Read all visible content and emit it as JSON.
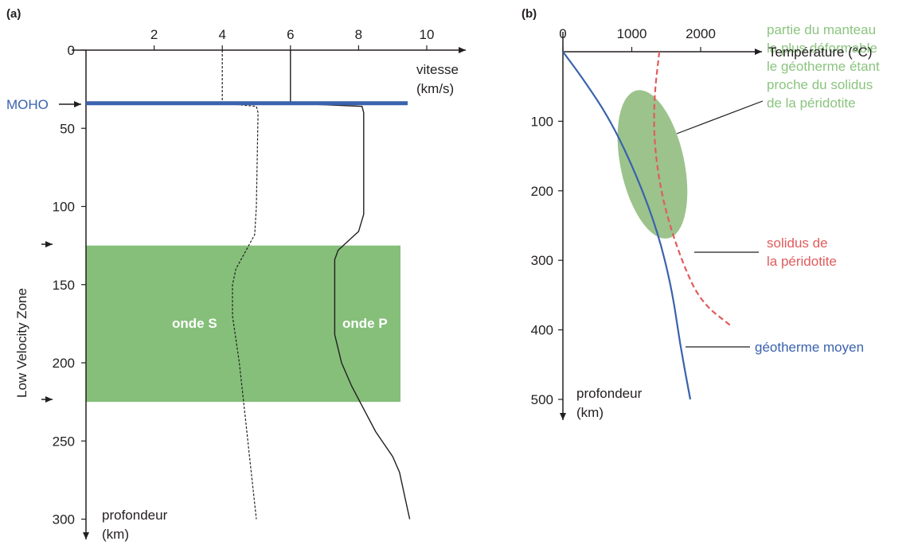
{
  "chart_data": [
    {
      "panel": "(a)",
      "type": "line",
      "x_ticks": [
        "2",
        "4",
        "6",
        "8",
        "10"
      ],
      "y_ticks": [
        "0",
        "50",
        "100",
        "150",
        "200",
        "250",
        "300"
      ],
      "xlabel": [
        "vitesse",
        "(km/s)"
      ],
      "ylabel": [
        "profondeur",
        "(km)"
      ],
      "xlim": [
        0,
        10
      ],
      "ylim": [
        0,
        300
      ],
      "moho": {
        "label": "MOHO",
        "depth": 34,
        "color": "#3a62ad"
      },
      "lvz": {
        "label": "Low Velocity Zone",
        "from": 125,
        "to": 225,
        "color": "#85bf7a"
      },
      "series": [
        {
          "name": "onde P",
          "points": [
            [
              6,
              0
            ],
            [
              6,
              34
            ],
            [
              8.1,
              36
            ],
            [
              8.15,
              40
            ],
            [
              8.15,
              105
            ],
            [
              8.0,
              116
            ],
            [
              7.4,
              128
            ],
            [
              7.3,
              134
            ],
            [
              7.3,
              182
            ],
            [
              7.5,
              200
            ],
            [
              7.8,
              215
            ],
            [
              8.5,
              244
            ],
            [
              9.0,
              260
            ],
            [
              9.2,
              270
            ],
            [
              9.4,
              290
            ],
            [
              9.5,
              300
            ]
          ]
        },
        {
          "name": "onde S",
          "points": [
            [
              4,
              0
            ],
            [
              4,
              34
            ],
            [
              5.0,
              36
            ],
            [
              5.05,
              40
            ],
            [
              5.0,
              100
            ],
            [
              4.95,
              118
            ],
            [
              4.4,
              140
            ],
            [
              4.3,
              150
            ],
            [
              4.3,
              170
            ],
            [
              4.5,
              200
            ],
            [
              4.7,
              240
            ],
            [
              4.8,
              260
            ],
            [
              4.9,
              280
            ],
            [
              5.0,
              300
            ]
          ]
        }
      ]
    },
    {
      "panel": "(b)",
      "type": "line",
      "x_ticks": [
        "0",
        "1000",
        "2000"
      ],
      "y_ticks": [
        "100",
        "200",
        "300",
        "400",
        "500"
      ],
      "xlabel": "Température (°C)",
      "ylabel": [
        "profondeur",
        "(km)"
      ],
      "xlim": [
        0,
        2500
      ],
      "ylim": [
        0,
        500
      ],
      "ellipse": {
        "center_temperature": 1300,
        "center_depth": 162,
        "label": [
          "partie du manteau",
          "la plus déformable",
          "le géotherme étant",
          "proche du solidus",
          "de la péridotite"
        ],
        "color": "#8bb878"
      },
      "series": [
        {
          "name": "géotherme moyen",
          "label": "géotherme moyen",
          "color": "#3a62ad",
          "points": [
            [
              0,
              0
            ],
            [
              300,
              40
            ],
            [
              700,
              100
            ],
            [
              1080,
              180
            ],
            [
              1380,
              260
            ],
            [
              1580,
              340
            ],
            [
              1700,
              420
            ],
            [
              1850,
              500
            ]
          ]
        },
        {
          "name": "solidus de la péridotite",
          "label": [
            "solidus de",
            "la péridotite"
          ],
          "color": "#e05c5c",
          "dashed": true,
          "points": [
            [
              1400,
              0
            ],
            [
              1320,
              70
            ],
            [
              1330,
              140
            ],
            [
              1460,
              220
            ],
            [
              1720,
              300
            ],
            [
              2000,
              360
            ],
            [
              2450,
              395
            ]
          ]
        }
      ]
    }
  ]
}
